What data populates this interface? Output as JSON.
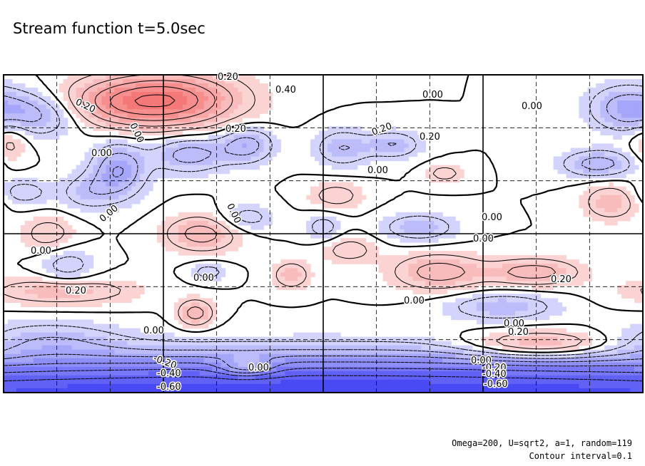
{
  "title": "Stream function t=5.0sec",
  "footer": {
    "line1": "Omega=200, U=sqrt2, a=1, random=119",
    "line2": "Contour interval=0.1"
  },
  "chart_data": {
    "type": "heatmap",
    "title": "Stream function t=5.0sec",
    "contour_interval": 0.1,
    "positive_color": "#f04a4a",
    "negative_color": "#4a4af5",
    "zero_line": "thick solid",
    "negative_lines": "dashed",
    "grid": "dashed, major lines solid",
    "contour_labels": [
      "0.20",
      "0.40",
      "0.20",
      "0.00",
      "0.20",
      "0.00",
      "0.20",
      "0.00",
      "0.00",
      "0.00",
      "0.00",
      "0.00",
      "0.00",
      "0.00",
      "0.00",
      "0.00",
      "0.20",
      "0.20",
      "0.00",
      "0.00",
      "0.00",
      "0.20",
      "0.00",
      "-0.20",
      "-0.40",
      "-0.60",
      "0.00",
      "-0.20",
      "-0.40",
      "-0.60",
      "0.20"
    ],
    "features": [
      {
        "sign": "pos",
        "peak": 0.5,
        "x": 0.25,
        "y": 0.92,
        "sx": 0.08,
        "sy": 0.06
      },
      {
        "sign": "pos",
        "peak": 0.2,
        "x": 0.13,
        "y": 0.9,
        "sx": 0.06,
        "sy": 0.05
      },
      {
        "sign": "neg",
        "peak": -0.3,
        "x": 0.06,
        "y": 0.88,
        "sx": 0.06,
        "sy": 0.05
      },
      {
        "sign": "neg",
        "peak": -0.2,
        "x": 0.97,
        "y": 0.9,
        "sx": 0.04,
        "sy": 0.05
      },
      {
        "sign": "pos",
        "peak": 0.15,
        "x": 0.01,
        "y": 0.79,
        "sx": 0.02,
        "sy": 0.05
      },
      {
        "sign": "neg",
        "peak": -0.3,
        "x": 0.18,
        "y": 0.7,
        "sx": 0.03,
        "sy": 0.06
      },
      {
        "sign": "neg",
        "peak": -0.25,
        "x": 0.29,
        "y": 0.75,
        "sx": 0.04,
        "sy": 0.04
      },
      {
        "sign": "neg",
        "peak": -0.25,
        "x": 0.38,
        "y": 0.78,
        "sx": 0.03,
        "sy": 0.04
      },
      {
        "sign": "neg",
        "peak": -0.2,
        "x": 0.53,
        "y": 0.77,
        "sx": 0.03,
        "sy": 0.04
      },
      {
        "sign": "neg",
        "peak": -0.2,
        "x": 0.61,
        "y": 0.78,
        "sx": 0.03,
        "sy": 0.03
      },
      {
        "sign": "neg",
        "peak": -0.25,
        "x": 0.93,
        "y": 0.72,
        "sx": 0.04,
        "sy": 0.03
      },
      {
        "sign": "pos",
        "peak": 0.15,
        "x": 0.69,
        "y": 0.69,
        "sx": 0.02,
        "sy": 0.02
      },
      {
        "sign": "pos",
        "peak": 0.15,
        "x": 0.52,
        "y": 0.62,
        "sx": 0.03,
        "sy": 0.03
      },
      {
        "sign": "pos",
        "peak": 0.2,
        "x": 0.95,
        "y": 0.6,
        "sx": 0.03,
        "sy": 0.04
      },
      {
        "sign": "neg",
        "peak": -0.15,
        "x": 0.13,
        "y": 0.63,
        "sx": 0.03,
        "sy": 0.04
      },
      {
        "sign": "neg",
        "peak": -0.15,
        "x": 0.03,
        "y": 0.63,
        "sx": 0.03,
        "sy": 0.03
      },
      {
        "sign": "pos",
        "peak": 0.15,
        "x": 0.07,
        "y": 0.5,
        "sx": 0.03,
        "sy": 0.04
      },
      {
        "sign": "pos",
        "peak": 0.25,
        "x": 0.31,
        "y": 0.5,
        "sx": 0.04,
        "sy": 0.04
      },
      {
        "sign": "neg",
        "peak": -0.15,
        "x": 0.38,
        "y": 0.55,
        "sx": 0.03,
        "sy": 0.03
      },
      {
        "sign": "neg",
        "peak": -0.15,
        "x": 0.5,
        "y": 0.52,
        "sx": 0.02,
        "sy": 0.03
      },
      {
        "sign": "neg",
        "peak": -0.2,
        "x": 0.65,
        "y": 0.52,
        "sx": 0.04,
        "sy": 0.03
      },
      {
        "sign": "pos",
        "peak": 0.15,
        "x": 0.54,
        "y": 0.45,
        "sx": 0.03,
        "sy": 0.03
      },
      {
        "sign": "pos",
        "peak": 0.2,
        "x": 0.45,
        "y": 0.37,
        "sx": 0.02,
        "sy": 0.03
      },
      {
        "sign": "pos",
        "peak": 0.25,
        "x": 0.68,
        "y": 0.38,
        "sx": 0.05,
        "sy": 0.04
      },
      {
        "sign": "pos",
        "peak": 0.25,
        "x": 0.83,
        "y": 0.38,
        "sx": 0.05,
        "sy": 0.03
      },
      {
        "sign": "neg",
        "peak": -0.15,
        "x": 0.1,
        "y": 0.4,
        "sx": 0.03,
        "sy": 0.04
      },
      {
        "sign": "neg",
        "peak": -0.15,
        "x": 0.32,
        "y": 0.38,
        "sx": 0.02,
        "sy": 0.02
      },
      {
        "sign": "pos",
        "peak": 0.2,
        "x": 0.09,
        "y": 0.32,
        "sx": 0.08,
        "sy": 0.03
      },
      {
        "sign": "pos",
        "peak": 0.25,
        "x": 0.3,
        "y": 0.25,
        "sx": 0.02,
        "sy": 0.03
      },
      {
        "sign": "neg",
        "peak": -0.15,
        "x": 0.07,
        "y": 0.17,
        "sx": 0.08,
        "sy": 0.04
      },
      {
        "sign": "neg",
        "peak": -0.2,
        "x": 0.78,
        "y": 0.27,
        "sx": 0.06,
        "sy": 0.03
      },
      {
        "sign": "pos",
        "peak": 0.3,
        "x": 0.84,
        "y": 0.15,
        "sx": 0.08,
        "sy": 0.03
      },
      {
        "sign": "pos",
        "peak": 0.25,
        "x": 0.38,
        "y": 0.08,
        "sx": 0.03,
        "sy": 0.02
      },
      {
        "sign": "neg",
        "peak": -0.65,
        "x": 0.5,
        "y": 0.0,
        "sx": 2.0,
        "sy": 0.07
      },
      {
        "sign": "neg",
        "peak": -0.15,
        "x": 0.5,
        "y": 0.09,
        "sx": 0.5,
        "sy": 0.05
      }
    ]
  }
}
